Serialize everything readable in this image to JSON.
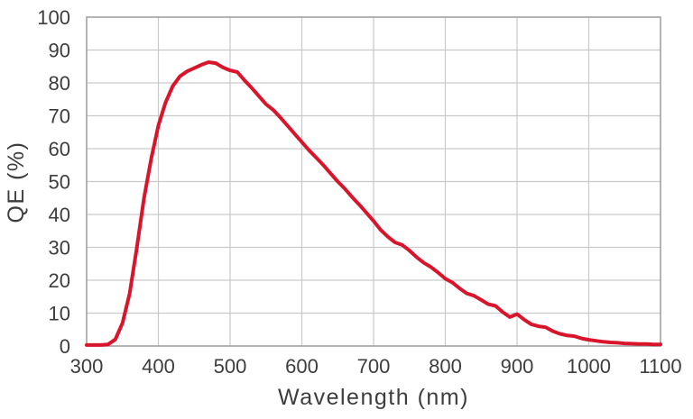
{
  "chart_data": {
    "type": "line",
    "title": "",
    "xlabel": "Wavelength (nm)",
    "ylabel": "QE (%)",
    "xlim": [
      300,
      1100
    ],
    "ylim": [
      0,
      100
    ],
    "x_ticks": [
      300,
      400,
      500,
      600,
      700,
      800,
      900,
      1000,
      1100
    ],
    "y_ticks": [
      0,
      10,
      20,
      30,
      40,
      50,
      60,
      70,
      80,
      90,
      100
    ],
    "grid": true,
    "legend": "none",
    "x": [
      300,
      310,
      320,
      330,
      340,
      350,
      360,
      370,
      380,
      390,
      400,
      410,
      420,
      430,
      440,
      450,
      460,
      470,
      480,
      490,
      500,
      510,
      520,
      530,
      540,
      550,
      560,
      570,
      580,
      590,
      600,
      610,
      620,
      630,
      640,
      650,
      660,
      670,
      680,
      690,
      700,
      710,
      720,
      730,
      740,
      750,
      760,
      770,
      780,
      790,
      800,
      810,
      820,
      830,
      840,
      850,
      860,
      870,
      880,
      890,
      900,
      910,
      920,
      930,
      940,
      950,
      960,
      970,
      980,
      990,
      1000,
      1010,
      1020,
      1030,
      1040,
      1050,
      1060,
      1070,
      1080,
      1090,
      1100
    ],
    "series": [
      {
        "name": "QE",
        "color": "#d9152b",
        "values": [
          0.3,
          0.3,
          0.3,
          0.5,
          2,
          7,
          16,
          30,
          45,
          57,
          67,
          74,
          79,
          82,
          83.5,
          84.5,
          85.5,
          86.3,
          86,
          84.7,
          83.8,
          83.3,
          80.8,
          78.5,
          76,
          73.5,
          71.8,
          69.5,
          67,
          64.5,
          62,
          59.5,
          57.3,
          55,
          52.5,
          50,
          47.8,
          45.3,
          43,
          40.5,
          38,
          35.3,
          33.2,
          31.5,
          30.7,
          29,
          27,
          25.3,
          24,
          22.3,
          20.5,
          19.3,
          17.5,
          16,
          15.3,
          14,
          12.7,
          12.2,
          10.3,
          8.8,
          9.7,
          8,
          6.6,
          6,
          5.7,
          4.5,
          3.7,
          3.2,
          3,
          2.3,
          1.9,
          1.6,
          1.3,
          1.1,
          1,
          0.8,
          0.7,
          0.6,
          0.6,
          0.5,
          0.5
        ]
      }
    ]
  },
  "colors": {
    "background": "#ffffff",
    "line": "#d9152b",
    "grid": "#c9c9c9",
    "frame": "#9b9b9b",
    "text": "#3d3d3d"
  }
}
